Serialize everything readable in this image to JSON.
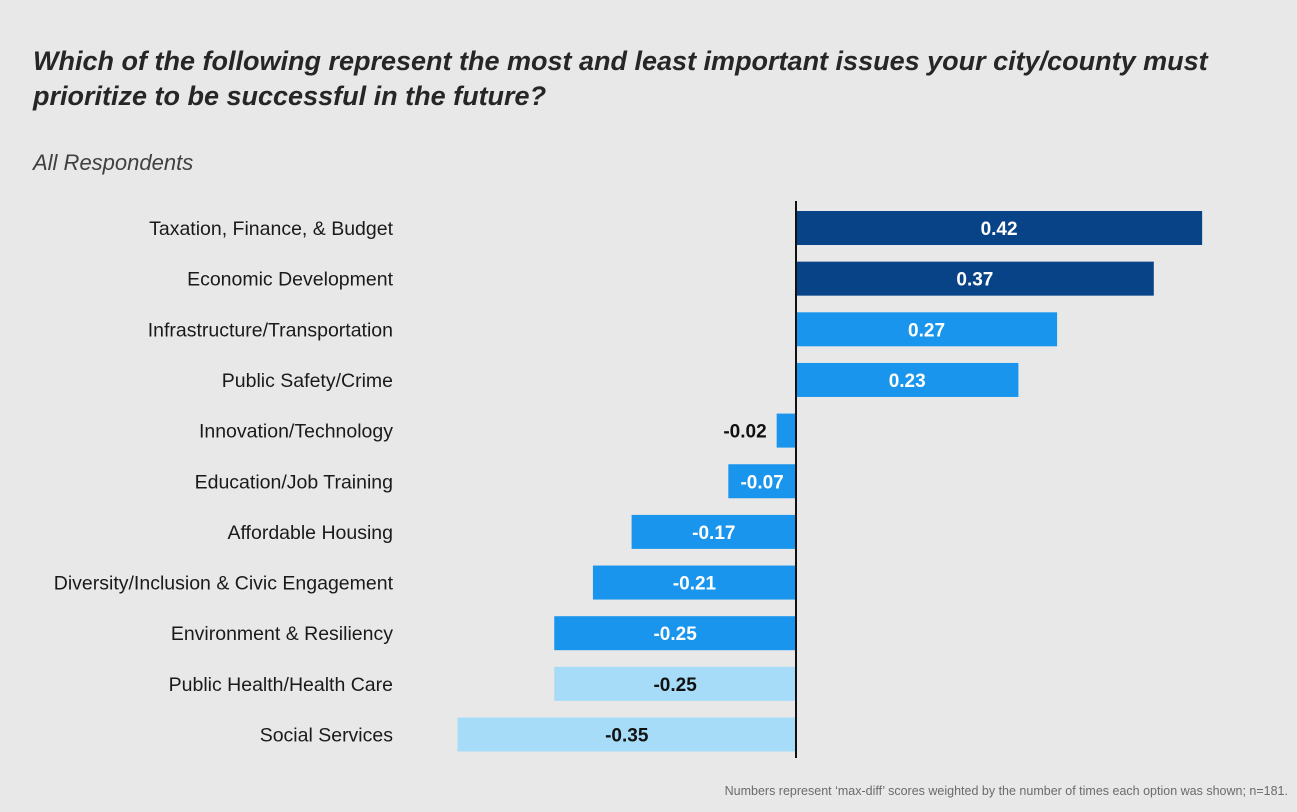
{
  "title": "Which of the following represent the most and least important issues your city/county must prioritize to be successful in the future?",
  "subtitle": "All Respondents",
  "footnote": "Numbers represent ‘max-diff’ scores weighted by the number of times each option was shown; n=181.",
  "colors": {
    "dark_blue": "#084388",
    "mid_blue": "#1995ed",
    "light_blue": "#a6dcf8",
    "background": "#e8e8e8",
    "axis": "#111111"
  },
  "chart_data": {
    "type": "bar",
    "orientation": "horizontal",
    "title": "Which of the following represent the most and least important issues your city/county must prioritize to be successful in the future?",
    "subtitle": "All Respondents",
    "xlabel": "",
    "ylabel": "",
    "xlim": [
      -0.35,
      0.42
    ],
    "grid": false,
    "legend": "none",
    "categories": [
      "Taxation, Finance, & Budget",
      "Economic Development",
      "Infrastructure/Transportation",
      "Public Safety/Crime",
      "Innovation/Technology",
      "Education/Job Training",
      "Affordable Housing",
      "Diversity/Inclusion & Civic Engagement",
      "Environment & Resiliency",
      "Public Health/Health Care",
      "Social Services"
    ],
    "values": [
      0.42,
      0.37,
      0.27,
      0.23,
      -0.02,
      -0.07,
      -0.17,
      -0.21,
      -0.25,
      -0.25,
      -0.35
    ],
    "value_labels": [
      "0.42",
      "0.37",
      "0.27",
      "0.23",
      "-0.02",
      "-0.07",
      "-0.17",
      "-0.21",
      "-0.25",
      "-0.25",
      "-0.35"
    ],
    "bar_colors": [
      "dark_blue",
      "dark_blue",
      "mid_blue",
      "mid_blue",
      "mid_blue",
      "mid_blue",
      "mid_blue",
      "mid_blue",
      "mid_blue",
      "light_blue",
      "light_blue"
    ]
  }
}
